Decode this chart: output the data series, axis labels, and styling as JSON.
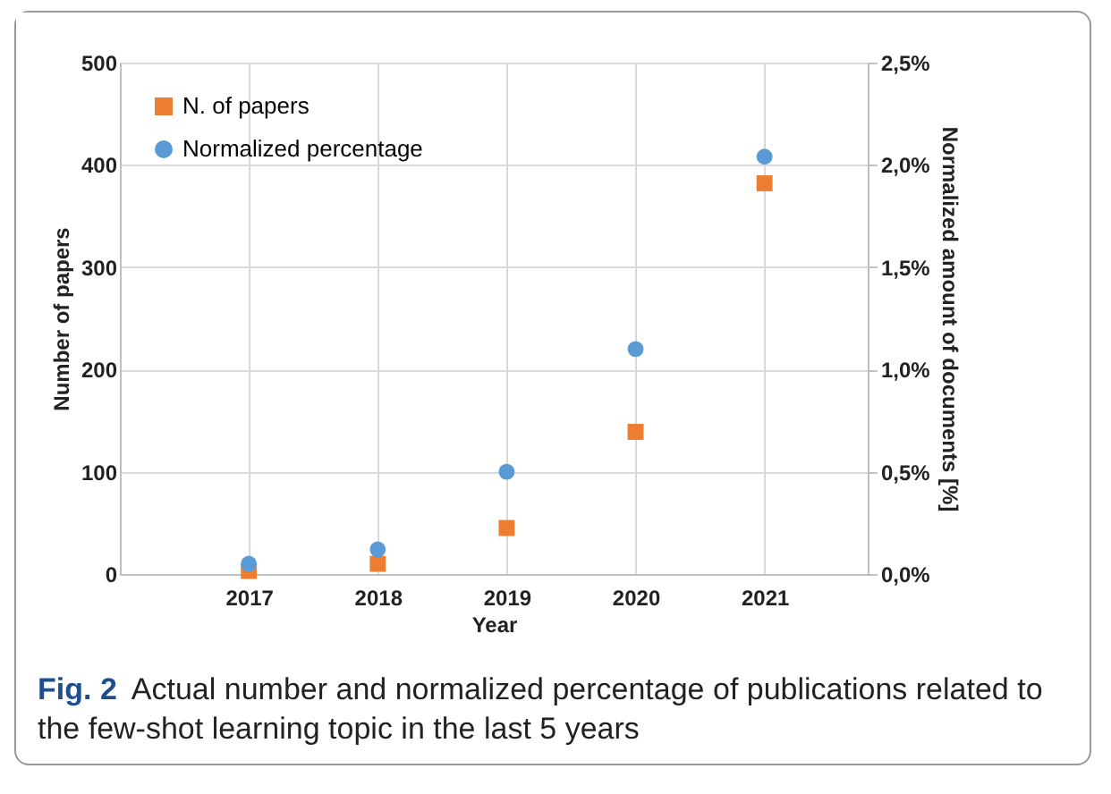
{
  "chart_data": {
    "type": "scatter",
    "xlabel": "Year",
    "ylabel": "Number  of papers",
    "y2label": "Normalized amount of documents [%]",
    "x": [
      2017,
      2018,
      2019,
      2020,
      2021
    ],
    "xlim": [
      2016,
      2021.8
    ],
    "xticks": [
      2017,
      2018,
      2019,
      2020,
      2021
    ],
    "ylim": [
      0,
      500
    ],
    "yticks": [
      0,
      100,
      200,
      300,
      400,
      500
    ],
    "y2lim": [
      0,
      2.5
    ],
    "y2ticks": [
      {
        "value": 0,
        "label": "0,0%"
      },
      {
        "value": 0.5,
        "label": "0,5%"
      },
      {
        "value": 1,
        "label": "1,0%"
      },
      {
        "value": 1.5,
        "label": "1,5%"
      },
      {
        "value": 2,
        "label": "2,0%"
      },
      {
        "value": 2.5,
        "label": "2,5%"
      }
    ],
    "series": [
      {
        "name": "N. of papers",
        "color": "#ed7d31",
        "marker": "square",
        "values": [
          3,
          10,
          45,
          139,
          382
        ]
      },
      {
        "name": "Normalized percentage",
        "color": "#5b9bd5",
        "marker": "circle",
        "axis": "y2",
        "values": [
          0.05,
          0.12,
          0.5,
          1.1,
          2.04
        ]
      }
    ],
    "grid": true,
    "legend": "top left",
    "annotations": [
      "Fig. 2",
      "Actual number and normalized percentage of publications related to the few-shot learning topic in the last 5 years"
    ]
  }
}
